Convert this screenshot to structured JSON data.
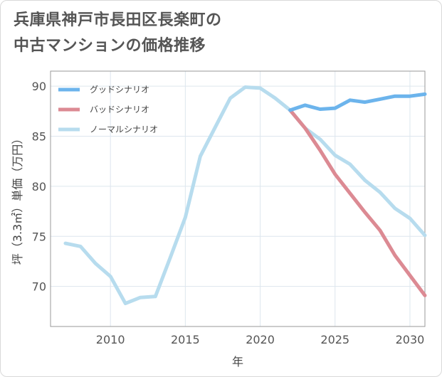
{
  "title_lines": [
    "兵庫県神戸市長田区長楽町の",
    "中古マンションの価格推移"
  ],
  "chart_data": {
    "type": "line",
    "xlabel": "年",
    "ylabel": "坪（3.3㎡）単価（万円）",
    "xlim": [
      2006,
      2031
    ],
    "ylim": [
      66,
      91.5
    ],
    "x_ticks": [
      2010,
      2015,
      2020,
      2025,
      2030
    ],
    "y_ticks": [
      70,
      75,
      80,
      85,
      90
    ],
    "grid": true,
    "legend_position": "top-left",
    "series": [
      {
        "name": "グッドシナリオ",
        "color": "#6cb4ec",
        "x": [
          2022,
          2023,
          2024,
          2025,
          2026,
          2027,
          2028,
          2029,
          2030,
          2031
        ],
        "y": [
          87.6,
          88.1,
          87.7,
          87.8,
          88.6,
          88.4,
          88.7,
          89.0,
          89.0,
          89.2
        ]
      },
      {
        "name": "バッドシナリオ",
        "color": "#dc8a93",
        "x": [
          2022,
          2023,
          2024,
          2025,
          2026,
          2027,
          2028,
          2029,
          2030,
          2031
        ],
        "y": [
          87.6,
          85.8,
          83.6,
          81.2,
          79.3,
          77.4,
          75.6,
          73.1,
          71.1,
          69.1
        ]
      },
      {
        "name": "ノーマルシナリオ",
        "color": "#b7dcee",
        "x": [
          2007,
          2008,
          2009,
          2010,
          2011,
          2012,
          2013,
          2014,
          2015,
          2016,
          2017,
          2018,
          2019,
          2020,
          2021,
          2022,
          2023,
          2024,
          2025,
          2026,
          2027,
          2028,
          2029,
          2030,
          2031
        ],
        "y": [
          74.3,
          74.0,
          72.3,
          71.0,
          68.3,
          68.9,
          69.0,
          72.9,
          76.9,
          83.0,
          85.9,
          88.8,
          89.9,
          89.8,
          88.8,
          87.6,
          85.8,
          84.7,
          83.1,
          82.2,
          80.6,
          79.4,
          77.8,
          76.8,
          75.1
        ]
      }
    ]
  }
}
